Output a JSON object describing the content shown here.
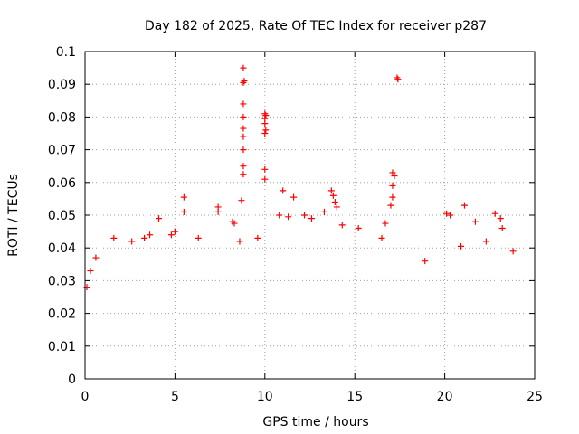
{
  "chart_data": {
    "type": "scatter",
    "title": "Day 182 of 2025, Rate Of TEC Index for receiver p287",
    "xlabel": "GPS time / hours",
    "ylabel": "ROTI / TECUs",
    "xlim": [
      0,
      25
    ],
    "ylim": [
      0,
      0.1
    ],
    "xticks": [
      0,
      5,
      10,
      15,
      20,
      25
    ],
    "xtick_labels": [
      "0",
      "5",
      "10",
      "15",
      "20",
      "25"
    ],
    "yticks": [
      0,
      0.01,
      0.02,
      0.03,
      0.04,
      0.05,
      0.06,
      0.07,
      0.08,
      0.09,
      0.1
    ],
    "ytick_labels": [
      "0",
      "0.01",
      "0.02",
      "0.03",
      "0.04",
      "0.05",
      "0.06",
      "0.07",
      "0.08",
      "0.09",
      "0.1"
    ],
    "grid": true,
    "marker": "+",
    "series_color": "#ff0000",
    "series": [
      {
        "name": "ROTI",
        "points": [
          [
            0.1,
            0.028
          ],
          [
            0.3,
            0.033
          ],
          [
            0.6,
            0.037
          ],
          [
            1.6,
            0.043
          ],
          [
            2.6,
            0.042
          ],
          [
            3.3,
            0.043
          ],
          [
            3.6,
            0.044
          ],
          [
            4.1,
            0.049
          ],
          [
            4.8,
            0.044
          ],
          [
            5.0,
            0.045
          ],
          [
            5.5,
            0.0555
          ],
          [
            5.5,
            0.051
          ],
          [
            6.3,
            0.043
          ],
          [
            7.4,
            0.0525
          ],
          [
            7.4,
            0.051
          ],
          [
            8.2,
            0.048
          ],
          [
            8.3,
            0.0475
          ],
          [
            8.6,
            0.042
          ],
          [
            8.7,
            0.0545
          ],
          [
            8.8,
            0.0625
          ],
          [
            8.8,
            0.065
          ],
          [
            8.8,
            0.07
          ],
          [
            8.8,
            0.074
          ],
          [
            8.8,
            0.0765
          ],
          [
            8.8,
            0.08
          ],
          [
            8.8,
            0.084
          ],
          [
            8.8,
            0.0905
          ],
          [
            8.85,
            0.091
          ],
          [
            8.8,
            0.095
          ],
          [
            9.6,
            0.043
          ],
          [
            10.0,
            0.061
          ],
          [
            10.0,
            0.064
          ],
          [
            10.0,
            0.075
          ],
          [
            10.05,
            0.076
          ],
          [
            10.0,
            0.078
          ],
          [
            10.0,
            0.0795
          ],
          [
            10.05,
            0.0805
          ],
          [
            10.0,
            0.081
          ],
          [
            10.8,
            0.05
          ],
          [
            11.0,
            0.0575
          ],
          [
            11.3,
            0.0495
          ],
          [
            11.6,
            0.0555
          ],
          [
            12.2,
            0.05
          ],
          [
            12.6,
            0.049
          ],
          [
            13.3,
            0.051
          ],
          [
            13.7,
            0.0575
          ],
          [
            13.8,
            0.056
          ],
          [
            13.9,
            0.054
          ],
          [
            14.0,
            0.0525
          ],
          [
            14.3,
            0.047
          ],
          [
            15.2,
            0.046
          ],
          [
            16.5,
            0.043
          ],
          [
            16.7,
            0.0475
          ],
          [
            17.0,
            0.053
          ],
          [
            17.1,
            0.0555
          ],
          [
            17.1,
            0.059
          ],
          [
            17.2,
            0.062
          ],
          [
            17.1,
            0.063
          ],
          [
            17.4,
            0.0915
          ],
          [
            17.35,
            0.092
          ],
          [
            18.9,
            0.036
          ],
          [
            20.1,
            0.0505
          ],
          [
            20.3,
            0.05
          ],
          [
            20.9,
            0.0405
          ],
          [
            21.1,
            0.053
          ],
          [
            21.7,
            0.048
          ],
          [
            22.3,
            0.042
          ],
          [
            22.8,
            0.0505
          ],
          [
            23.1,
            0.049
          ],
          [
            23.2,
            0.046
          ],
          [
            23.8,
            0.039
          ]
        ]
      }
    ]
  }
}
